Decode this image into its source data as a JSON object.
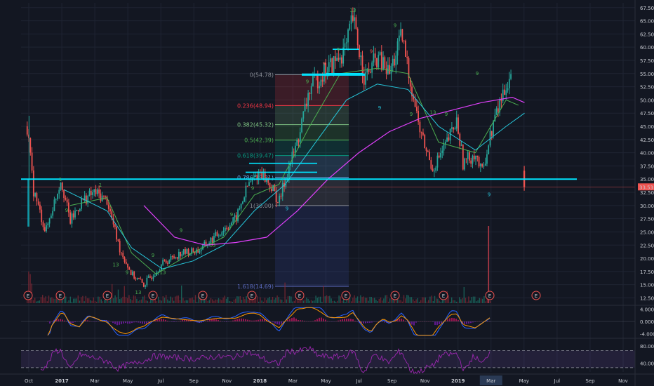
{
  "chart_data": {
    "type": "candlestick",
    "y_axis_labels": [
      "67.50",
      "65.00",
      "62.50",
      "60.00",
      "57.50",
      "55.00",
      "52.50",
      "50.00",
      "47.50",
      "45.00",
      "42.50",
      "40.00",
      "37.50",
      "35.00",
      "32.50",
      "30.00",
      "27.50",
      "25.00",
      "22.50",
      "20.00",
      "17.50",
      "15.00",
      "12.50"
    ],
    "ylim": [
      11.5,
      68
    ],
    "price_tag": "33.53",
    "price_tag_value": 33.53,
    "x_axis_labels": [
      "Oct",
      "2017",
      "Mar",
      "May",
      "Jul",
      "Sep",
      "Nov",
      "2018",
      "Mar",
      "May",
      "Jul",
      "Sep",
      "Nov",
      "2019",
      "Mar",
      "May",
      "Jul",
      "Sep",
      "Nov"
    ],
    "x_axis_bold": [
      "2017",
      "2018",
      "2019"
    ],
    "x_axis_highlight": "Mar",
    "support_line": 35.0,
    "fibonacci": [
      {
        "ratio": "0",
        "label": "0(54.78)",
        "value": 54.78,
        "color": "#8a8d96"
      },
      {
        "ratio": "0.236",
        "label": "0.236(48.94)",
        "value": 48.94,
        "color": "#f23645"
      },
      {
        "ratio": "0.382",
        "label": "0.382(45.32)",
        "value": 45.32,
        "color": "#81c784"
      },
      {
        "ratio": "0.5",
        "label": "0.5(42.39)",
        "value": 42.39,
        "color": "#4caf50"
      },
      {
        "ratio": "0.618",
        "label": "0.618(39.47)",
        "value": 39.47,
        "color": "#089981"
      },
      {
        "ratio": "0.786",
        "label": "0.786(35.31)",
        "value": 35.31,
        "color": "#64b5f6"
      },
      {
        "ratio": "1",
        "label": "1(30.00)",
        "value": 30.0,
        "color": "#8a8d96"
      },
      {
        "ratio": "1.618",
        "label": "1.618(14.69)",
        "value": 14.69,
        "color": "#5c6bc0"
      }
    ],
    "series": [
      {
        "time": 0.0,
        "value": 26.0
      },
      {
        "time": 0.01,
        "value": 45.0
      },
      {
        "time": 0.02,
        "value": 33.0
      },
      {
        "time": 0.04,
        "value": 25.0
      },
      {
        "time": 0.055,
        "value": 31.0
      },
      {
        "time": 0.065,
        "value": 35.0
      },
      {
        "time": 0.08,
        "value": 27.0
      },
      {
        "time": 0.1,
        "value": 31.0
      },
      {
        "time": 0.12,
        "value": 32.5
      },
      {
        "time": 0.14,
        "value": 31.0
      },
      {
        "time": 0.16,
        "value": 22.0
      },
      {
        "time": 0.18,
        "value": 17.0
      },
      {
        "time": 0.2,
        "value": 15.0
      },
      {
        "time": 0.23,
        "value": 19.0
      },
      {
        "time": 0.26,
        "value": 21.0
      },
      {
        "time": 0.29,
        "value": 21.5
      },
      {
        "time": 0.32,
        "value": 24.5
      },
      {
        "time": 0.35,
        "value": 27.5
      },
      {
        "time": 0.37,
        "value": 34.0
      },
      {
        "time": 0.39,
        "value": 36.5
      },
      {
        "time": 0.41,
        "value": 33.0
      },
      {
        "time": 0.42,
        "value": 30.5
      },
      {
        "time": 0.43,
        "value": 35.0
      },
      {
        "time": 0.45,
        "value": 42.0
      },
      {
        "time": 0.47,
        "value": 52.0
      },
      {
        "time": 0.49,
        "value": 55.0
      },
      {
        "time": 0.51,
        "value": 57.0
      },
      {
        "time": 0.53,
        "value": 60.0
      },
      {
        "time": 0.54,
        "value": 65.5
      },
      {
        "time": 0.56,
        "value": 54.0
      },
      {
        "time": 0.58,
        "value": 58.0
      },
      {
        "time": 0.6,
        "value": 55.0
      },
      {
        "time": 0.62,
        "value": 62.0
      },
      {
        "time": 0.63,
        "value": 56.0
      },
      {
        "time": 0.65,
        "value": 44.0
      },
      {
        "time": 0.67,
        "value": 37.0
      },
      {
        "time": 0.69,
        "value": 41.0
      },
      {
        "time": 0.71,
        "value": 46.0
      },
      {
        "time": 0.72,
        "value": 38.0
      },
      {
        "time": 0.74,
        "value": 40.0
      },
      {
        "time": 0.75,
        "value": 36.0
      },
      {
        "time": 0.77,
        "value": 46.0
      },
      {
        "time": 0.79,
        "value": 53.0
      },
      {
        "time": 0.8,
        "value": 55.5
      },
      {
        "time": 0.81,
        "value": 51.0
      },
      {
        "time": 0.82,
        "value": 33.5
      }
    ],
    "ma_fast": [
      {
        "time": 0.08,
        "value": 30.0
      },
      {
        "time": 0.14,
        "value": 31.5
      },
      {
        "time": 0.18,
        "value": 21.0
      },
      {
        "time": 0.22,
        "value": 17.0
      },
      {
        "time": 0.27,
        "value": 20.5
      },
      {
        "time": 0.33,
        "value": 24.0
      },
      {
        "time": 0.38,
        "value": 32.0
      },
      {
        "time": 0.42,
        "value": 34.0
      },
      {
        "time": 0.47,
        "value": 45.0
      },
      {
        "time": 0.52,
        "value": 55.0
      },
      {
        "time": 0.58,
        "value": 56.0
      },
      {
        "time": 0.63,
        "value": 55.0
      },
      {
        "time": 0.68,
        "value": 42.0
      },
      {
        "time": 0.74,
        "value": 40.0
      },
      {
        "time": 0.79,
        "value": 50.0
      },
      {
        "time": 0.81,
        "value": 49.0
      }
    ],
    "ma_slow": [
      {
        "time": 0.07,
        "value": 33.0
      },
      {
        "time": 0.14,
        "value": 29.0
      },
      {
        "time": 0.18,
        "value": 22.0
      },
      {
        "time": 0.23,
        "value": 18.0
      },
      {
        "time": 0.28,
        "value": 19.5
      },
      {
        "time": 0.33,
        "value": 22.5
      },
      {
        "time": 0.38,
        "value": 29.0
      },
      {
        "time": 0.43,
        "value": 34.0
      },
      {
        "time": 0.48,
        "value": 42.0
      },
      {
        "time": 0.53,
        "value": 50.0
      },
      {
        "time": 0.58,
        "value": 53.0
      },
      {
        "time": 0.63,
        "value": 52.0
      },
      {
        "time": 0.68,
        "value": 45.0
      },
      {
        "time": 0.74,
        "value": 40.5
      },
      {
        "time": 0.79,
        "value": 45.0
      },
      {
        "time": 0.82,
        "value": 47.5
      }
    ],
    "ma_200": [
      {
        "time": 0.2,
        "value": 30.0
      },
      {
        "time": 0.25,
        "value": 24.0
      },
      {
        "time": 0.3,
        "value": 22.5
      },
      {
        "time": 0.35,
        "value": 23.0
      },
      {
        "time": 0.4,
        "value": 24.0
      },
      {
        "time": 0.45,
        "value": 29.0
      },
      {
        "time": 0.5,
        "value": 35.0
      },
      {
        "time": 0.55,
        "value": 40.0
      },
      {
        "time": 0.6,
        "value": 44.0
      },
      {
        "time": 0.65,
        "value": 46.5
      },
      {
        "time": 0.7,
        "value": 48.0
      },
      {
        "time": 0.75,
        "value": 49.5
      },
      {
        "time": 0.8,
        "value": 50.5
      },
      {
        "time": 0.82,
        "value": 49.5
      }
    ],
    "earnings_markers": [
      "E",
      "E",
      "E",
      "E",
      "E",
      "E",
      "E",
      "E",
      "E",
      "E",
      "E",
      "E"
    ],
    "macd_axis_labels": [
      "4.0000",
      "0.0000",
      "-4.0000"
    ],
    "rsi_axis_labels": [
      "80.0000",
      "40.0000"
    ],
    "td_labels": [
      "1",
      "9",
      "13",
      "9",
      "13",
      "9",
      "13",
      "9",
      "1",
      "13",
      "9",
      "9",
      "9",
      "9",
      "9",
      "13",
      "9",
      "9",
      "9",
      "9",
      "13",
      "9",
      "9",
      "9",
      "9"
    ]
  }
}
